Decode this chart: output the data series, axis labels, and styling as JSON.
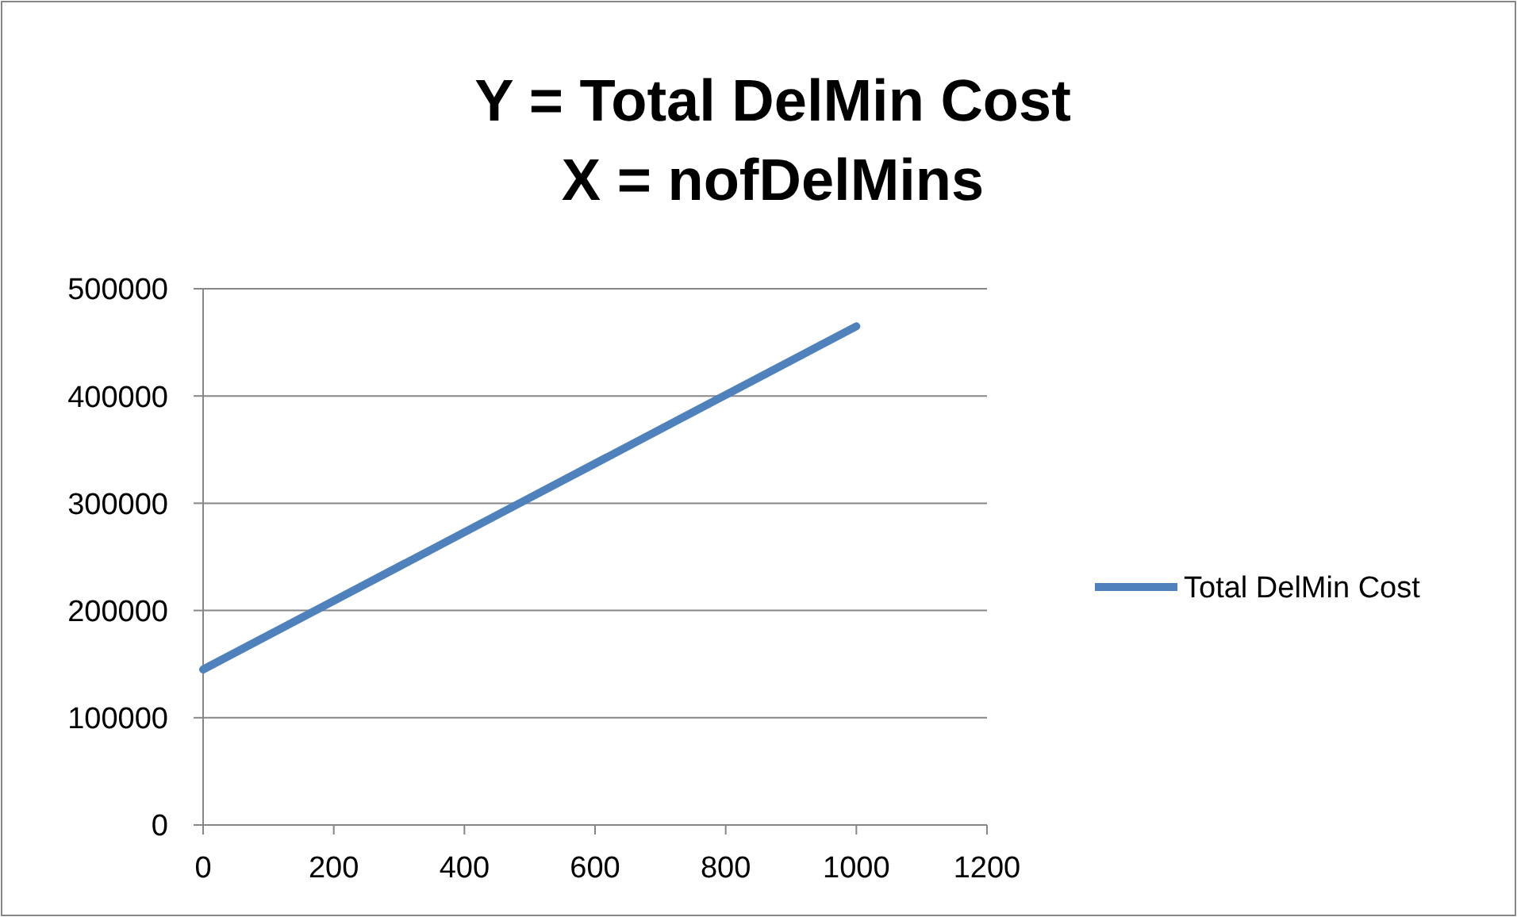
{
  "chart_data": {
    "type": "line",
    "title": "Y = Total DelMin Cost\nX = nofDelMins",
    "x": [
      0,
      500,
      1000
    ],
    "series": [
      {
        "name": "Total DelMin Cost",
        "color": "#4f81bd",
        "values": [
          145000,
          305000,
          465000
        ]
      }
    ],
    "xlim": [
      0,
      1200
    ],
    "xticks": [
      0,
      200,
      400,
      600,
      800,
      1000,
      1200
    ],
    "ylim": [
      0,
      500000
    ],
    "yticks": [
      0,
      100000,
      200000,
      300000,
      400000,
      500000
    ],
    "grid": "y",
    "legend": "right",
    "marker": "none",
    "line_style": "solid"
  }
}
